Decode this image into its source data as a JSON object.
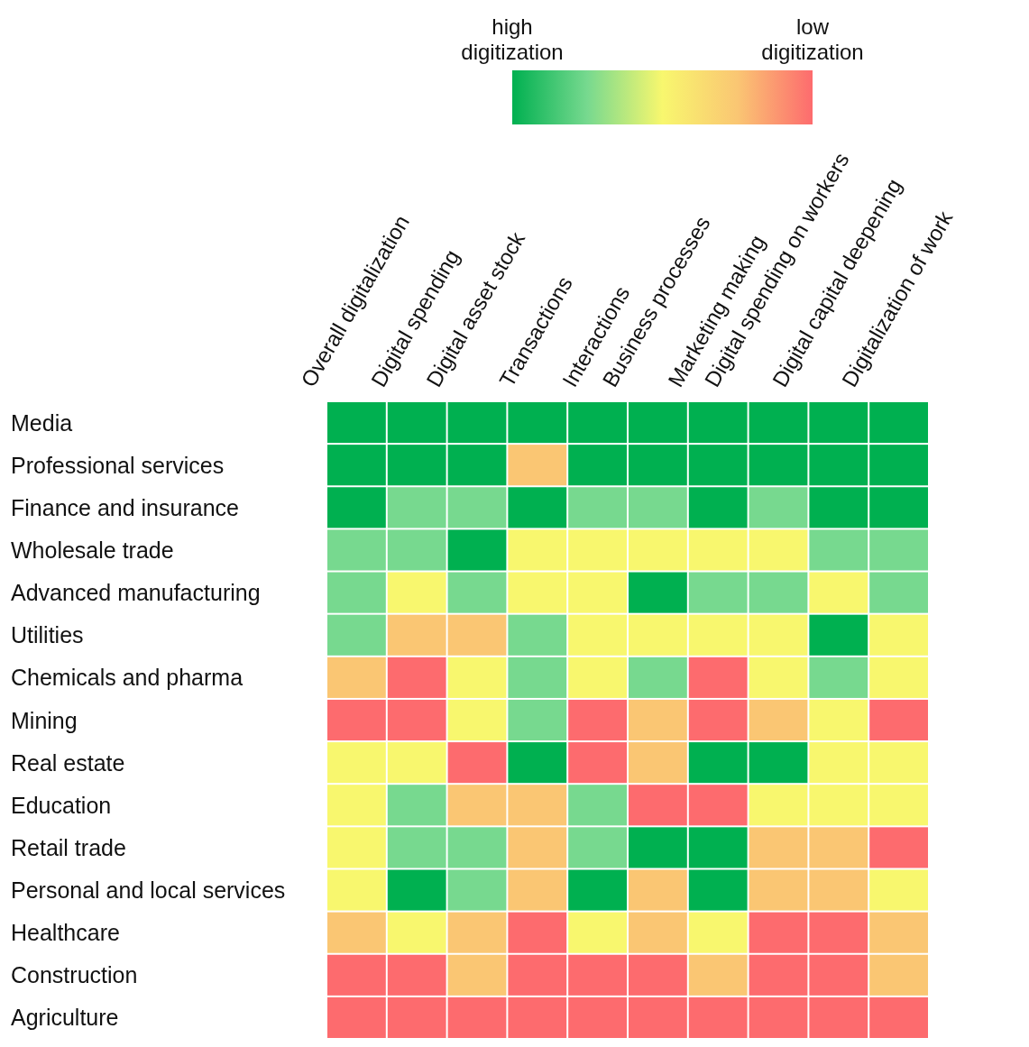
{
  "chart_data": {
    "type": "heatmap",
    "categories": [
      "Overall digitalization",
      "Digital spending",
      "Digital asset stock",
      "Transactions",
      "Interactions",
      "Business processes",
      "Marketing making",
      "Digital spending on workers",
      "Digital capital deepening",
      "Digitalization of work"
    ],
    "y_categories": [
      "Media",
      "Professional services",
      "Finance and insurance",
      "Wholesale trade",
      "Advanced manufacturing",
      "Utilities",
      "Chemicals and pharma",
      "Mining",
      "Real estate",
      "Education",
      "Retail trade",
      "Personal and local services",
      "Healthcare",
      "Construction",
      "Agriculture"
    ],
    "cells": [
      [
        1,
        1,
        1,
        1,
        1,
        1,
        1,
        1,
        1,
        1
      ],
      [
        1,
        1,
        1,
        4,
        1,
        1,
        1,
        1,
        1,
        1
      ],
      [
        1,
        2,
        2,
        1,
        2,
        2,
        1,
        2,
        1,
        1
      ],
      [
        2,
        2,
        1,
        3,
        3,
        3,
        3,
        3,
        2,
        2
      ],
      [
        2,
        3,
        2,
        3,
        3,
        1,
        2,
        2,
        3,
        2
      ],
      [
        2,
        4,
        4,
        2,
        3,
        3,
        3,
        3,
        1,
        3
      ],
      [
        4,
        5,
        3,
        2,
        3,
        2,
        5,
        3,
        2,
        3
      ],
      [
        5,
        5,
        3,
        2,
        5,
        4,
        5,
        4,
        3,
        5
      ],
      [
        3,
        3,
        5,
        1,
        5,
        4,
        1,
        1,
        3,
        3
      ],
      [
        3,
        2,
        4,
        4,
        2,
        5,
        5,
        3,
        3,
        3
      ],
      [
        3,
        2,
        2,
        4,
        2,
        1,
        1,
        4,
        4,
        5
      ],
      [
        3,
        1,
        2,
        4,
        1,
        4,
        1,
        4,
        4,
        3
      ],
      [
        4,
        3,
        4,
        5,
        3,
        4,
        3,
        5,
        5,
        4
      ],
      [
        5,
        5,
        4,
        5,
        5,
        5,
        4,
        5,
        5,
        4
      ],
      [
        5,
        5,
        5,
        5,
        5,
        5,
        5,
        5,
        5,
        5
      ]
    ],
    "clim": [
      1,
      5
    ],
    "cticks": [
      {
        "value": 1,
        "label": "high digitization"
      },
      {
        "value": 5,
        "label": "low digitization"
      }
    ]
  }
}
